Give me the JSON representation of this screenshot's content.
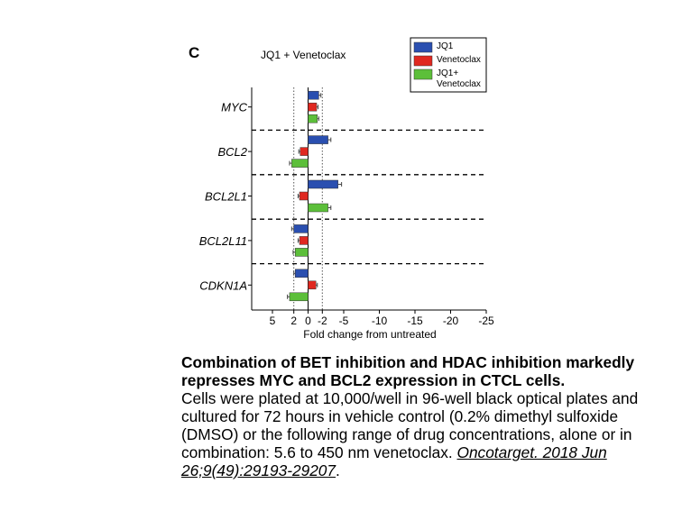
{
  "panel_label": "C",
  "chart_data": {
    "type": "bar",
    "orientation": "horizontal",
    "title": "JQ1 + Venetoclax",
    "xlabel": "Fold change from untreated",
    "ylabel": "",
    "categories": [
      "MYC",
      "BCL2",
      "BCL2L1",
      "BCL2L11",
      "CDKN1A"
    ],
    "series": [
      {
        "name": "JQ1",
        "color": "#2a4fb0",
        "values": [
          -1.5,
          -2.8,
          -4.2,
          2.0,
          1.8
        ]
      },
      {
        "name": "Venetoclax",
        "color": "#e02820",
        "values": [
          -1.2,
          1.1,
          1.2,
          1.2,
          -1.1
        ]
      },
      {
        "name": "JQ1+ Venetoclax",
        "color": "#5cbf3a",
        "values": [
          -1.3,
          2.3,
          -2.8,
          1.8,
          2.6
        ]
      }
    ],
    "errors": [
      [
        0.3,
        0.4,
        0.5,
        0.3,
        0.2
      ],
      [
        0.2,
        0.2,
        0.2,
        0.2,
        0.2
      ],
      [
        0.2,
        0.3,
        0.4,
        0.3,
        0.3
      ]
    ],
    "x_ticks": [
      "5",
      "2",
      "0",
      "-2",
      "-5",
      "-10",
      "-15",
      "-20",
      "-25"
    ],
    "reference_lines": [
      "2",
      "-2"
    ],
    "legend_position": "top-right",
    "legend_labels": [
      [
        "JQ1"
      ],
      [
        "Venetoclax"
      ],
      [
        "JQ1+",
        "Venetoclax"
      ]
    ]
  },
  "caption": {
    "title": "Combination of BET inhibition and HDAC inhibition markedly represses MYC and BCL2 expression in CTCL cells.",
    "body": "Cells were plated at 10,000/well in 96-well black optical plates and cultured for 72 hours in vehicle control (0.2% dimethyl sulfoxide (DMSO) or the following range of drug concentrations, alone or in combination: 5.6 to 450 nm venetoclax.",
    "citation": "Oncotarget. 2018 Jun 26;9(49):29193-29207"
  }
}
